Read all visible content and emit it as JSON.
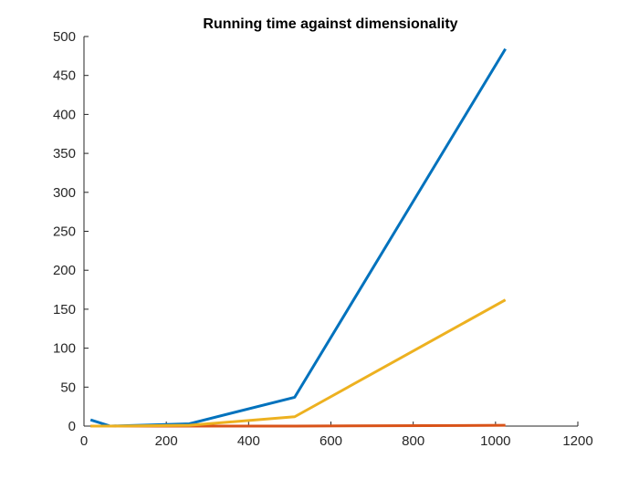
{
  "chart_data": {
    "type": "line",
    "title": "Running time against dimensionality",
    "xlabel": "",
    "ylabel": "",
    "xlim": [
      0,
      1200
    ],
    "ylim": [
      0,
      500
    ],
    "xticks": [
      0,
      200,
      400,
      600,
      800,
      1000,
      1200
    ],
    "yticks": [
      0,
      50,
      100,
      150,
      200,
      250,
      300,
      350,
      400,
      450,
      500
    ],
    "grid": false,
    "legend": "none",
    "series": [
      {
        "color": "#0072BD",
        "x": [
          16,
          64,
          256,
          512,
          1024
        ],
        "y": [
          8,
          0,
          3,
          37,
          484
        ]
      },
      {
        "color": "#D95319",
        "x": [
          16,
          64,
          256,
          512,
          1024
        ],
        "y": [
          0,
          0,
          0,
          0,
          1
        ]
      },
      {
        "color": "#EDB120",
        "x": [
          16,
          64,
          256,
          512,
          1024
        ],
        "y": [
          0,
          0,
          1,
          12,
          162
        ]
      }
    ]
  }
}
